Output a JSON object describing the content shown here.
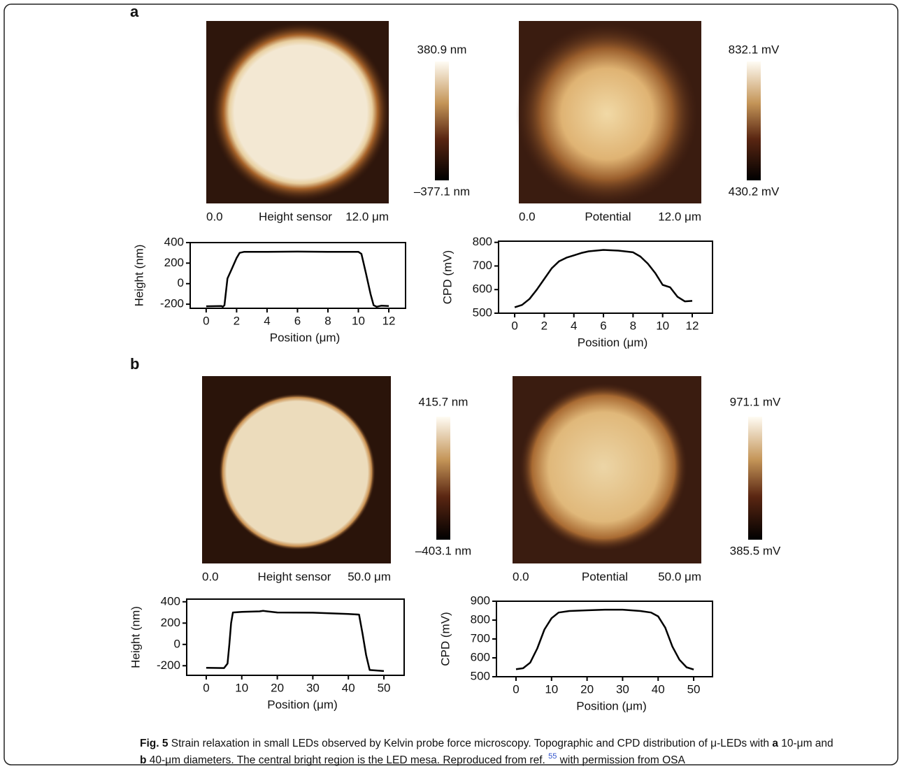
{
  "panels": [
    {
      "label": "a",
      "maps": [
        {
          "max": "380.9 nm",
          "min": "–377.1 nm",
          "scale_start": "0.0",
          "name": "Height sensor",
          "scale_end": "12.0 μm"
        },
        {
          "max": "832.1 mV",
          "min": "430.2 mV",
          "scale_start": "0.0",
          "name": "Potential",
          "scale_end": "12.0 μm"
        }
      ]
    },
    {
      "label": "b",
      "maps": [
        {
          "max": "415.7 nm",
          "min": "–403.1 nm",
          "scale_start": "0.0",
          "name": "Height sensor",
          "scale_end": "50.0 μm"
        },
        {
          "max": "971.1 mV",
          "min": "385.5 mV",
          "scale_start": "0.0",
          "name": "Potential",
          "scale_end": "50.0 μm"
        }
      ]
    }
  ],
  "chart_data": [
    {
      "type": "line",
      "xlabel": "Position (μm)",
      "ylabel": "Height (nm)",
      "color": "#000000",
      "x": [
        0,
        1,
        1.1,
        1.2,
        1.4,
        1.7,
        2,
        2.2,
        2.5,
        4,
        6,
        8,
        10,
        10.2,
        10.5,
        10.8,
        11,
        11.2,
        11.5,
        12
      ],
      "values": [
        -220,
        -218,
        -225,
        -210,
        50,
        150,
        250,
        300,
        310,
        310,
        312,
        310,
        310,
        290,
        100,
        -100,
        -210,
        -225,
        -215,
        -218
      ],
      "xlim": [
        -1.05,
        13.1
      ],
      "ylim": [
        -240,
        400
      ],
      "xticks": [
        0,
        2,
        4,
        6,
        8,
        10,
        12
      ],
      "yticks": [
        -200,
        0,
        200,
        400
      ]
    },
    {
      "type": "line",
      "xlabel": "Position (μm)",
      "ylabel": "CPD (mV)",
      "color": "#000000",
      "x": [
        0,
        0.5,
        1,
        1.5,
        2,
        2.5,
        3,
        3.5,
        4,
        4.5,
        5,
        6,
        7,
        8,
        8.5,
        9,
        9.5,
        10,
        10.5,
        11,
        11.5,
        12
      ],
      "values": [
        525,
        535,
        560,
        600,
        645,
        690,
        720,
        735,
        745,
        755,
        762,
        768,
        765,
        758,
        740,
        710,
        670,
        620,
        610,
        570,
        550,
        552
      ],
      "xlim": [
        -1.09,
        13.37
      ],
      "ylim": [
        500,
        805
      ],
      "xticks": [
        0,
        2,
        4,
        6,
        8,
        10,
        12
      ],
      "yticks": [
        500,
        600,
        700,
        800
      ]
    },
    {
      "type": "line",
      "xlabel": "Position (μm)",
      "ylabel": "Height (nm)",
      "color": "#000000",
      "x": [
        0,
        5,
        6,
        6.5,
        7,
        7.5,
        10,
        15,
        16,
        20,
        30,
        40,
        43,
        44,
        45,
        46,
        50
      ],
      "values": [
        -220,
        -222,
        -180,
        0,
        200,
        300,
        305,
        310,
        315,
        300,
        298,
        285,
        280,
        100,
        -100,
        -240,
        -250
      ],
      "xlim": [
        -5.5,
        55.7
      ],
      "ylim": [
        -290,
        425
      ],
      "xticks": [
        0,
        10,
        20,
        30,
        40,
        50
      ],
      "yticks": [
        -200,
        0,
        200,
        400
      ]
    },
    {
      "type": "line",
      "xlabel": "Position (μm)",
      "ylabel": "CPD (mV)",
      "color": "#000000",
      "x": [
        0,
        2,
        4,
        6,
        8,
        10,
        12,
        15,
        20,
        25,
        30,
        35,
        38,
        40,
        42,
        44,
        46,
        48,
        50
      ],
      "values": [
        540,
        545,
        575,
        650,
        750,
        810,
        840,
        848,
        852,
        855,
        855,
        848,
        840,
        820,
        760,
        660,
        590,
        550,
        538
      ],
      "xlim": [
        -5.5,
        55.3
      ],
      "ylim": [
        500,
        900
      ],
      "xticks": [
        0,
        10,
        20,
        30,
        40,
        50
      ],
      "yticks": [
        500,
        600,
        700,
        800,
        900
      ]
    }
  ],
  "caption": {
    "lines": [
      [
        {
          "text": "Fig. 5",
          "bold": true
        },
        {
          "text": " Strain relaxation in small LEDs observed by Kelvin probe force microscopy. Topographic and CPD distribution of μ-LEDs with "
        },
        {
          "text": "a",
          "bold": true
        },
        {
          "text": " 10-μm and"
        }
      ],
      [
        {
          "text": "b",
          "bold": true
        },
        {
          "text": " 40-μm diameters. The central bright region is the LED mesa. Reproduced from ref. "
        },
        {
          "text": "55",
          "sup": true
        },
        {
          "text": " with permission from OSA"
        }
      ]
    ]
  }
}
